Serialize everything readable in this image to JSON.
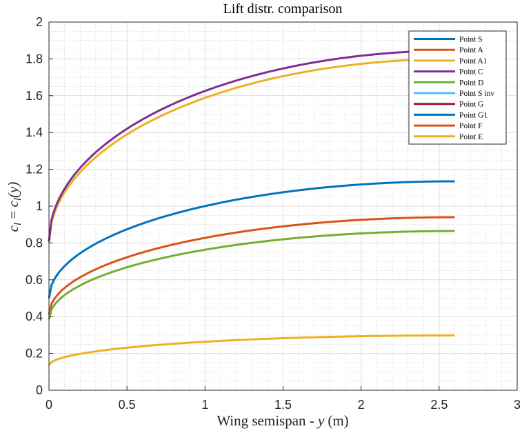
{
  "chart_data": {
    "type": "line",
    "title": "Lift distr.  comparison",
    "xlabel": {
      "prefix": "Wing semispan - ",
      "var": "y",
      "unit": "(m)"
    },
    "ylabel": {
      "lhs": "c",
      "lhs_sub": "l",
      "eq": " = ",
      "rhs": "c",
      "rhs_sub": "l",
      "arg": "(y)"
    },
    "xlim": [
      0,
      3
    ],
    "ylim": [
      0,
      2
    ],
    "xticks": [
      0,
      0.5,
      1,
      1.5,
      2,
      2.5,
      3
    ],
    "xtick_labels": [
      "0",
      "0.5",
      "1",
      "1.5",
      "2",
      "2.5",
      "3"
    ],
    "yticks": [
      0,
      0.2,
      0.4,
      0.6,
      0.8,
      1,
      1.2,
      1.4,
      1.6,
      1.8,
      2
    ],
    "ytick_labels": [
      "0",
      "0.2",
      "0.4",
      "0.6",
      "0.8",
      "1",
      "1.2",
      "1.4",
      "1.6",
      "1.8",
      "2"
    ],
    "grid": true,
    "minor_grid": true,
    "legend_position": "top-right",
    "x_end": 2.6,
    "series": [
      {
        "name": "Point S",
        "color": "#0072BD",
        "y0": 0.5,
        "y_end": 1.135
      },
      {
        "name": "Point A",
        "color": "#D95319",
        "y0": 0.41,
        "y_end": 0.94
      },
      {
        "name": "Point A1",
        "color": "#EDB120",
        "y0": 0.8,
        "y_end": 1.8
      },
      {
        "name": "Point C",
        "color": "#7E2F8E",
        "y0": 0.81,
        "y_end": 1.845
      },
      {
        "name": "Point D",
        "color": "#77AC30",
        "y0": 0.385,
        "y_end": 0.865
      },
      {
        "name": "Point S inv",
        "color": "#4DBEEE",
        "y0": null,
        "y_end": null
      },
      {
        "name": "Point G",
        "color": "#A2142F",
        "y0": null,
        "y_end": null
      },
      {
        "name": "Point G1",
        "color": "#0072BD",
        "y0": null,
        "y_end": null
      },
      {
        "name": "Point F",
        "color": "#D95319",
        "y0": null,
        "y_end": null
      },
      {
        "name": "Point E",
        "color": "#EDB120",
        "y0": 0.135,
        "y_end": 0.298
      }
    ]
  }
}
